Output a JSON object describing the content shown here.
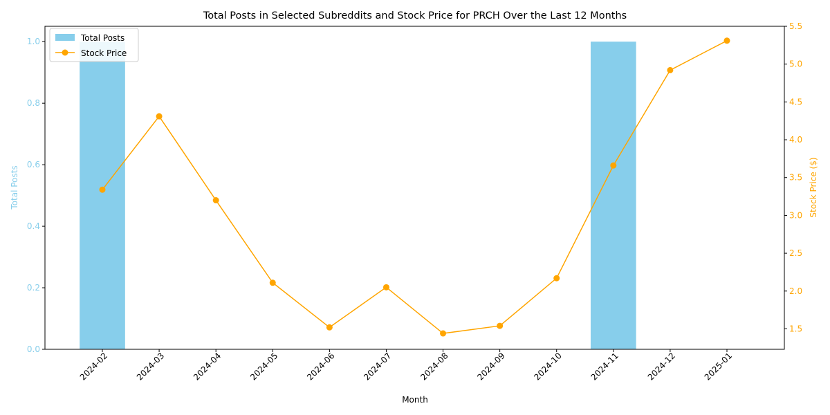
{
  "chart_data": {
    "type": "bar+line",
    "title": "Total Posts in Selected Subreddits and Stock Price for PRCH Over the Last 12 Months",
    "xlabel": "Month",
    "ylabel_left": "Total Posts",
    "ylabel_right": "Stock Price ($)",
    "categories": [
      "2024-02",
      "2024-03",
      "2024-04",
      "2024-05",
      "2024-06",
      "2024-07",
      "2024-08",
      "2024-09",
      "2024-10",
      "2024-11",
      "2024-12",
      "2025-01"
    ],
    "series": [
      {
        "name": "Total Posts",
        "type": "bar",
        "axis": "left",
        "color": "#87ceeb",
        "values": [
          1,
          0,
          0,
          0,
          0,
          0,
          0,
          0,
          0,
          1,
          0,
          0
        ]
      },
      {
        "name": "Stock Price",
        "type": "line",
        "axis": "right",
        "color": "#ffa500",
        "marker": "circle",
        "values": [
          3.34,
          4.31,
          3.2,
          2.11,
          1.52,
          2.05,
          1.44,
          1.54,
          2.17,
          3.66,
          4.92,
          5.31
        ]
      }
    ],
    "ylim_left": [
      0,
      1.05
    ],
    "ylim_right": [
      1.23,
      5.5
    ],
    "yticks_left": [
      "0.0",
      "0.2",
      "0.4",
      "0.6",
      "0.8",
      "1.0"
    ],
    "yticks_right": [
      "1.5",
      "2.0",
      "2.5",
      "3.0",
      "3.5",
      "4.0",
      "4.5",
      "5.0",
      "5.5"
    ],
    "legend_position": "upper-left",
    "grid": false
  }
}
